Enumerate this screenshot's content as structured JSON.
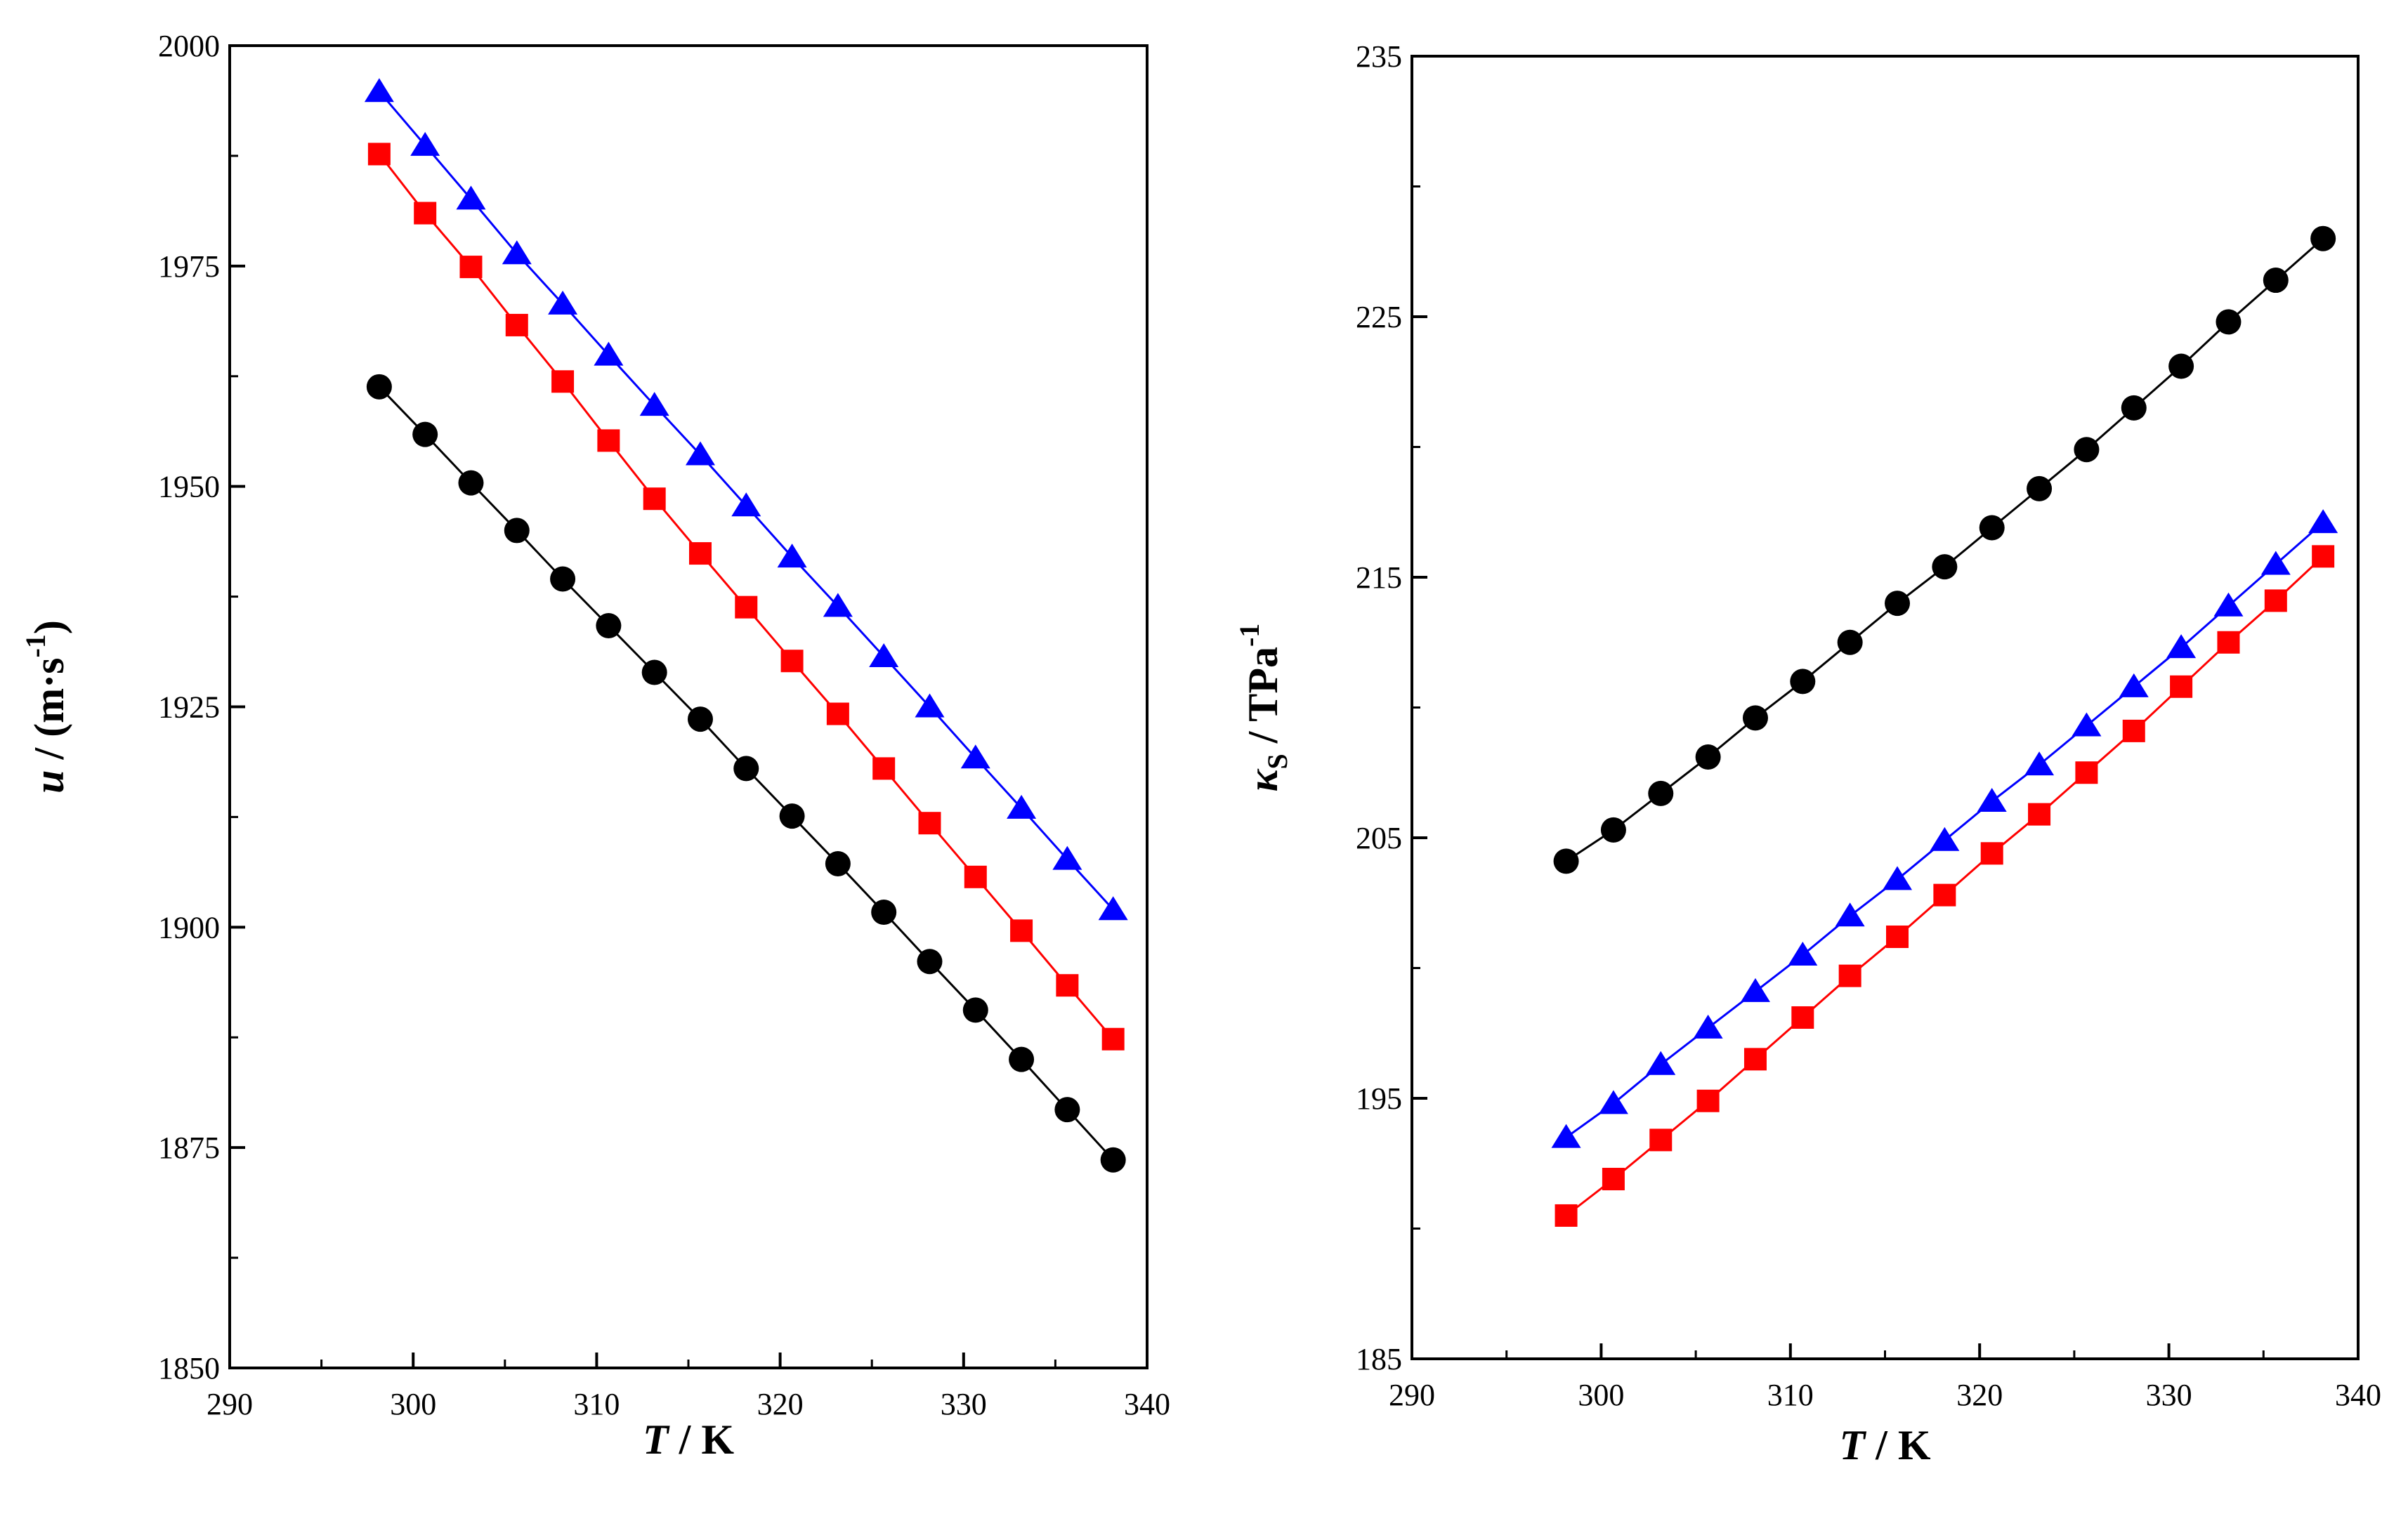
{
  "chart_data": [
    {
      "type": "line",
      "panel": "left",
      "title": "",
      "xlabel": {
        "main": "T",
        "rest": " / K"
      },
      "ylabel": {
        "main": "u",
        "rest": " / (m·s",
        "sup": "-1",
        "tail": ")"
      },
      "xlim": [
        290,
        340
      ],
      "ylim": [
        1850,
        2000
      ],
      "xticks": [
        290,
        300,
        310,
        320,
        330,
        340
      ],
      "yticks": [
        1850,
        1875,
        1900,
        1925,
        1950,
        1975,
        2000
      ],
      "grid": false,
      "x": [
        298.15,
        300.65,
        303.15,
        305.65,
        308.15,
        310.65,
        313.15,
        315.65,
        318.15,
        320.65,
        323.15,
        325.65,
        328.15,
        330.65,
        333.15,
        335.65,
        338.15
      ],
      "series": [
        {
          "name": "circle-series",
          "marker": "circle",
          "color": "#000000",
          "values": [
            1961.3,
            1955.9,
            1950.4,
            1945.0,
            1939.5,
            1934.2,
            1928.9,
            1923.6,
            1918.0,
            1912.6,
            1907.2,
            1901.7,
            1896.1,
            1890.6,
            1885.0,
            1879.3,
            1873.6
          ]
        },
        {
          "name": "square-series",
          "marker": "square",
          "color": "#ff0000",
          "values": [
            1987.7,
            1981.0,
            1974.9,
            1968.3,
            1961.9,
            1955.2,
            1948.6,
            1942.4,
            1936.3,
            1930.2,
            1924.2,
            1918.0,
            1911.8,
            1905.7,
            1899.6,
            1893.4,
            1887.3
          ]
        },
        {
          "name": "triangle-series",
          "marker": "triangle",
          "color": "#0000ff",
          "values": [
            1994.8,
            1988.7,
            1982.6,
            1976.4,
            1970.7,
            1964.9,
            1959.2,
            1953.6,
            1947.8,
            1942.0,
            1936.4,
            1930.7,
            1925.0,
            1919.2,
            1913.5,
            1907.7,
            1902.0
          ]
        }
      ]
    },
    {
      "type": "line",
      "panel": "right",
      "title": "",
      "xlabel": {
        "main": "T",
        "rest": " / K"
      },
      "ylabel": {
        "main": "κ",
        "sub": "S",
        "rest": " / TPa",
        "sup": "-1"
      },
      "xlim": [
        290,
        340
      ],
      "ylim": [
        185,
        235
      ],
      "xticks": [
        290,
        300,
        310,
        320,
        330,
        340
      ],
      "yticks": [
        185,
        195,
        205,
        215,
        225,
        235
      ],
      "grid": false,
      "x": [
        298.15,
        300.65,
        303.15,
        305.65,
        308.15,
        310.65,
        313.15,
        315.65,
        318.15,
        320.65,
        323.15,
        325.65,
        328.15,
        330.65,
        333.15,
        335.65,
        338.15
      ],
      "series": [
        {
          "name": "circle-series",
          "marker": "circle",
          "color": "#000000",
          "values": [
            204.1,
            205.3,
            206.7,
            208.1,
            209.6,
            211.0,
            212.5,
            214.0,
            215.4,
            216.9,
            218.4,
            219.9,
            221.5,
            223.1,
            224.8,
            226.4,
            228.0
          ]
        },
        {
          "name": "square-series",
          "marker": "square",
          "color": "#ff0000",
          "values": [
            190.5,
            191.9,
            193.4,
            194.9,
            196.5,
            198.1,
            199.7,
            201.2,
            202.8,
            204.4,
            205.9,
            207.5,
            209.1,
            210.8,
            212.5,
            214.1,
            215.8
          ]
        },
        {
          "name": "triangle-series",
          "marker": "triangle",
          "color": "#0000ff",
          "values": [
            193.5,
            194.8,
            196.3,
            197.7,
            199.1,
            200.5,
            202.0,
            203.4,
            204.9,
            206.4,
            207.8,
            209.3,
            210.8,
            212.3,
            213.9,
            215.5,
            217.1
          ]
        }
      ]
    }
  ]
}
